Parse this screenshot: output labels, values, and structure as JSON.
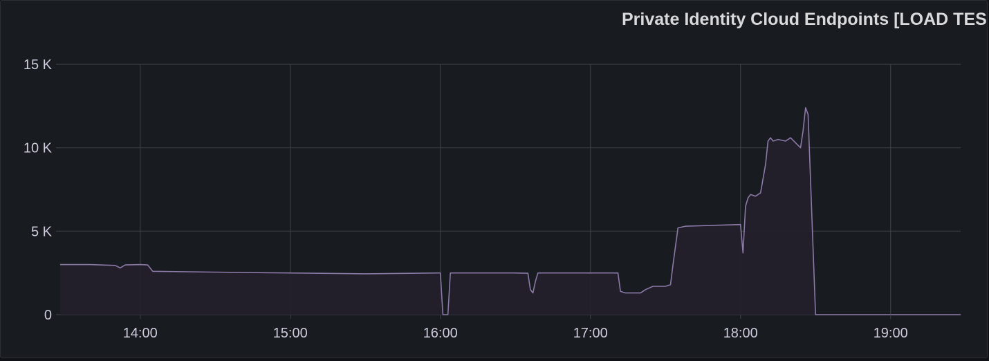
{
  "panel": {
    "title": "Private Identity Cloud Endpoints [LOAD TES"
  },
  "chart_data": {
    "type": "area",
    "title": "Private Identity Cloud Endpoints [LOAD TES",
    "xlabel": "",
    "ylabel": "",
    "x_ticks": [
      "14:00",
      "15:00",
      "16:00",
      "17:00",
      "18:00",
      "19:00"
    ],
    "y_ticks": [
      "0",
      "5 K",
      "10 K",
      "15 K"
    ],
    "y_tick_values": [
      0,
      5000,
      10000,
      15000
    ],
    "ylim": [
      0,
      15000
    ],
    "xlim": [
      "13:28",
      "19:28"
    ],
    "grid": true,
    "colors": {
      "line": "#8b7aa8",
      "fill": "#231f2b",
      "grid": "#3a3d43",
      "background": "#181b1f"
    },
    "series": [
      {
        "x": [
          "13:28",
          "13:40",
          "13:50",
          "13:52",
          "13:54",
          "14:00",
          "14:03",
          "14:05",
          "14:30",
          "15:00",
          "15:30",
          "15:59",
          "16:00",
          "16:01",
          "16:02",
          "16:03",
          "16:04",
          "16:30",
          "16:35",
          "16:36",
          "16:37",
          "16:38",
          "16:39",
          "16:40",
          "17:00",
          "17:10",
          "17:11",
          "17:12",
          "17:14",
          "17:20",
          "17:22",
          "17:25",
          "17:30",
          "17:32",
          "17:33",
          "17:35",
          "17:38",
          "18:00",
          "18:01",
          "18:02",
          "18:03",
          "18:04",
          "18:06",
          "18:08",
          "18:10",
          "18:11",
          "18:12",
          "18:13",
          "18:15",
          "18:18",
          "18:20",
          "18:24",
          "18:25",
          "18:26",
          "18:27",
          "18:28",
          "18:29",
          "18:30",
          "18:31",
          "18:32",
          "18:33",
          "19:28"
        ],
        "y": [
          3000,
          3000,
          2950,
          2800,
          2980,
          3000,
          2980,
          2600,
          2550,
          2500,
          2450,
          2500,
          2500,
          0,
          0,
          0,
          2500,
          2500,
          2480,
          1500,
          1300,
          2000,
          2500,
          2500,
          2500,
          2500,
          2500,
          1400,
          1300,
          1300,
          1500,
          1700,
          1700,
          1800,
          3000,
          5200,
          5300,
          5400,
          3700,
          6500,
          7000,
          7200,
          7100,
          7300,
          9000,
          10400,
          10600,
          10400,
          10500,
          10400,
          10600,
          10000,
          11000,
          12400,
          12000,
          8000,
          4000,
          0,
          0,
          0,
          0,
          0
        ]
      }
    ]
  }
}
